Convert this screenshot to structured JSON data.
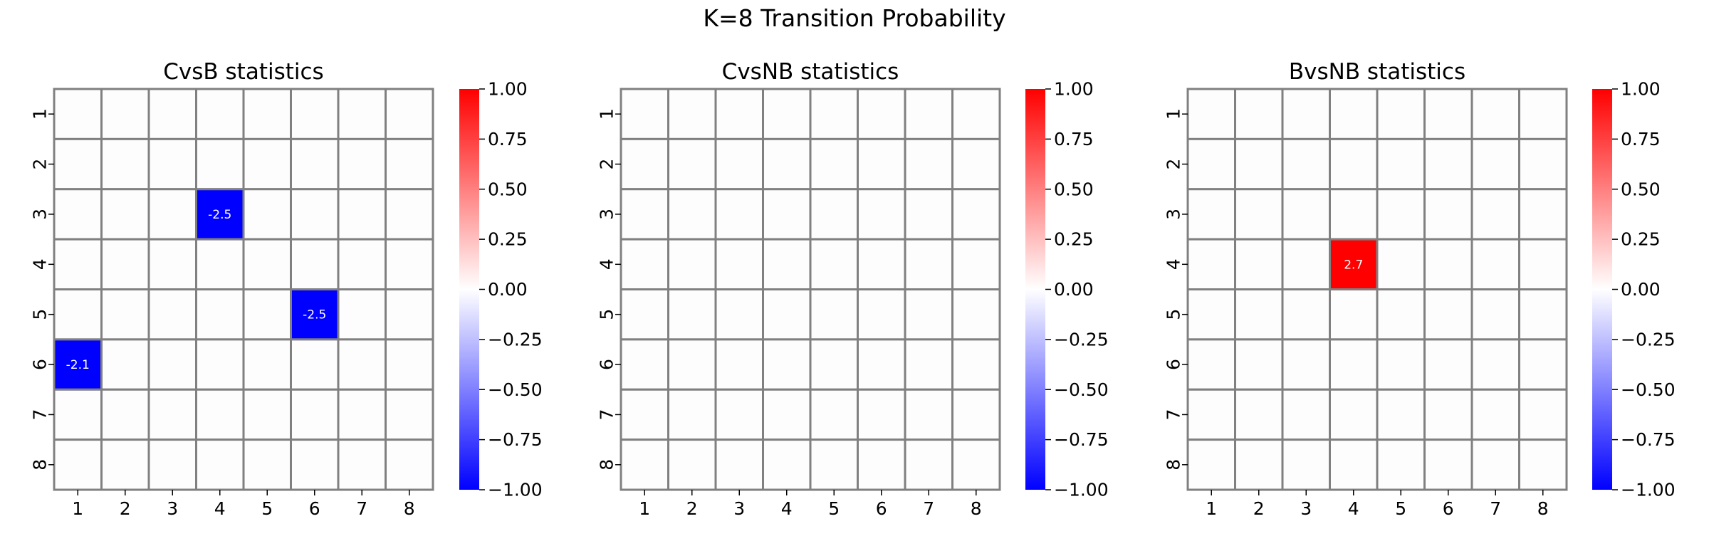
{
  "suptitle": "K=8 Transition Probability",
  "chart_data": [
    {
      "type": "heatmap",
      "title": "CvsB statistics",
      "xlabel": "",
      "ylabel": "",
      "x_ticklabels": [
        "1",
        "2",
        "3",
        "4",
        "5",
        "6",
        "7",
        "8"
      ],
      "y_ticklabels": [
        "1",
        "2",
        "3",
        "4",
        "5",
        "6",
        "7",
        "8"
      ],
      "vmin": -1.0,
      "vmax": 1.0,
      "cells": [
        {
          "row": 3,
          "col": 4,
          "value": -2.5,
          "label": "-2.5"
        },
        {
          "row": 5,
          "col": 6,
          "value": -2.5,
          "label": "-2.5"
        },
        {
          "row": 6,
          "col": 1,
          "value": -2.1,
          "label": "-2.1"
        }
      ],
      "colorbar": {
        "ticks": [
          1.0,
          0.75,
          0.5,
          0.25,
          0.0,
          -0.25,
          -0.5,
          -0.75,
          -1.0
        ],
        "ticklabels": [
          "1.00",
          "0.75",
          "0.50",
          "0.25",
          "0.00",
          "−0.25",
          "−0.50",
          "−0.75",
          "−1.00"
        ],
        "colormap": "bwr"
      }
    },
    {
      "type": "heatmap",
      "title": "CvsNB statistics",
      "xlabel": "",
      "ylabel": "",
      "x_ticklabels": [
        "1",
        "2",
        "3",
        "4",
        "5",
        "6",
        "7",
        "8"
      ],
      "y_ticklabels": [
        "1",
        "2",
        "3",
        "4",
        "5",
        "6",
        "7",
        "8"
      ],
      "vmin": -1.0,
      "vmax": 1.0,
      "cells": [],
      "colorbar": {
        "ticks": [
          1.0,
          0.75,
          0.5,
          0.25,
          0.0,
          -0.25,
          -0.5,
          -0.75,
          -1.0
        ],
        "ticklabels": [
          "1.00",
          "0.75",
          "0.50",
          "0.25",
          "0.00",
          "−0.25",
          "−0.50",
          "−0.75",
          "−1.00"
        ],
        "colormap": "bwr"
      }
    },
    {
      "type": "heatmap",
      "title": "BvsNB statistics",
      "xlabel": "",
      "ylabel": "",
      "x_ticklabels": [
        "1",
        "2",
        "3",
        "4",
        "5",
        "6",
        "7",
        "8"
      ],
      "y_ticklabels": [
        "1",
        "2",
        "3",
        "4",
        "5",
        "6",
        "7",
        "8"
      ],
      "vmin": -1.0,
      "vmax": 1.0,
      "cells": [
        {
          "row": 4,
          "col": 4,
          "value": 2.7,
          "label": "2.7"
        }
      ],
      "colorbar": {
        "ticks": [
          1.0,
          0.75,
          0.5,
          0.25,
          0.0,
          -0.25,
          -0.5,
          -0.75,
          -1.0
        ],
        "ticklabels": [
          "1.00",
          "0.75",
          "0.50",
          "0.25",
          "0.00",
          "−0.25",
          "−0.50",
          "−0.75",
          "−1.00"
        ],
        "colormap": "bwr"
      }
    }
  ],
  "colors": {
    "grid_line": "#808080",
    "empty_cell": "#fdfdfd",
    "positive": "#ff0000",
    "negative": "#0000ff",
    "neutral": "#ffffff",
    "annotation_text": "#ffffff"
  }
}
